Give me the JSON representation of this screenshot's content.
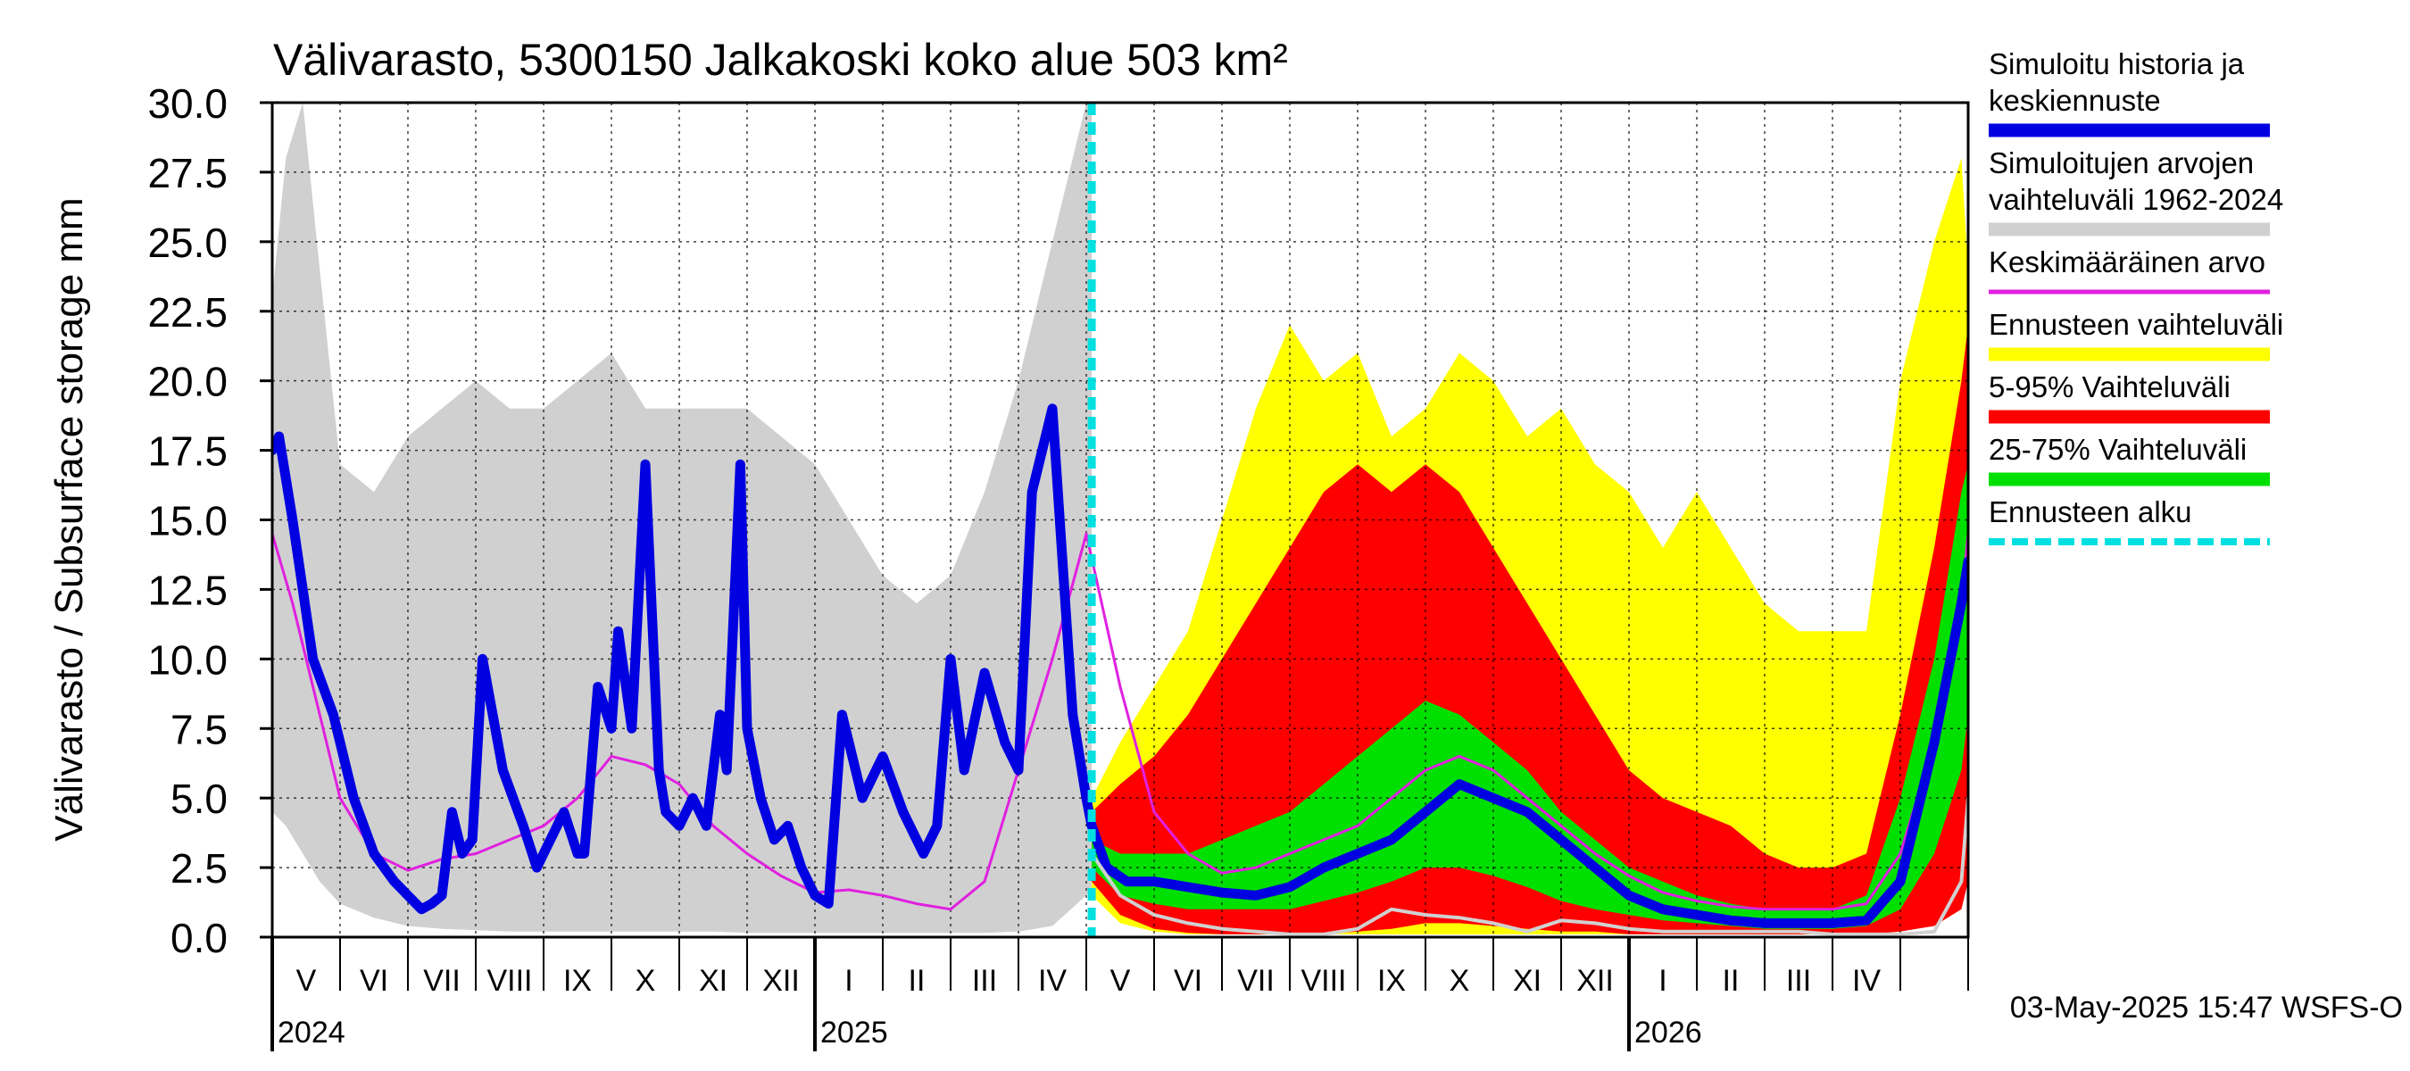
{
  "chart_data": {
    "type": "area",
    "title": "Välivarasto, 5300150 Jalkakoski koko alue 503 km²",
    "ylabel": "Välivarasto / Subsurface storage  mm",
    "xlabel": "",
    "ylim": [
      0,
      30
    ],
    "yticks": [
      "0.0",
      "2.5",
      "5.0",
      "7.5",
      "10.0",
      "12.5",
      "15.0",
      "17.5",
      "20.0",
      "22.5",
      "25.0",
      "27.5",
      "30.0"
    ],
    "x_range_months": [
      0,
      25
    ],
    "month_labels": [
      "V",
      "VI",
      "VII",
      "VIII",
      "IX",
      "X",
      "XI",
      "XII",
      "I",
      "II",
      "III",
      "IV",
      "V",
      "VI",
      "VII",
      "VIII",
      "IX",
      "X",
      "XI",
      "XII",
      "I",
      "II",
      "III",
      "IV"
    ],
    "year_labels": [
      {
        "label": "2024",
        "month_index": 0
      },
      {
        "label": "2025",
        "month_index": 8
      },
      {
        "label": "2026",
        "month_index": 20
      }
    ],
    "forecast_start_month": 12.08,
    "legend": [
      {
        "label_lines": [
          "Simuloitu historia ja",
          "keskiennuste"
        ],
        "color": "#0000e0",
        "style": "solid"
      },
      {
        "label_lines": [
          "Simuloitujen arvojen",
          "vaihteluväli 1962-2024"
        ],
        "color": "#d0d0d0",
        "style": "solid"
      },
      {
        "label_lines": [
          "Keskimääräinen arvo"
        ],
        "color": "#e020e0",
        "style": "thin"
      },
      {
        "label_lines": [
          "Ennusteen vaihteluväli"
        ],
        "color": "#ffff00",
        "style": "solid"
      },
      {
        "label_lines": [
          "5-95% Vaihteluväli"
        ],
        "color": "#ff0000",
        "style": "solid"
      },
      {
        "label_lines": [
          "25-75% Vaihteluväli"
        ],
        "color": "#00e000",
        "style": "solid"
      },
      {
        "label_lines": [
          "Ennusteen alku"
        ],
        "color": "#00e0e0",
        "style": "dashed"
      }
    ],
    "series": [
      {
        "name": "Simuloitujen arvojen vaihteluväli 1962-2024",
        "kind": "band",
        "color": "#d0d0d0",
        "x": [
          0,
          0.2,
          0.45,
          0.7,
          1,
          1.5,
          2,
          2.5,
          3,
          3.5,
          4,
          4.5,
          5,
          5.5,
          6,
          6.5,
          7,
          7.5,
          8,
          8.5,
          9,
          9.5,
          10,
          10.5,
          11,
          11.5,
          12,
          12.08
        ],
        "lo": [
          4.5,
          4,
          3,
          2,
          1.2,
          0.7,
          0.4,
          0.3,
          0.25,
          0.2,
          0.2,
          0.2,
          0.2,
          0.2,
          0.2,
          0.2,
          0.15,
          0.15,
          0.15,
          0.15,
          0.15,
          0.15,
          0.15,
          0.15,
          0.2,
          0.4,
          1.5,
          1.8
        ],
        "hi": [
          23,
          28,
          30,
          24,
          17,
          16,
          18,
          19,
          20,
          19,
          19,
          20,
          21,
          19,
          19,
          19,
          19,
          18,
          17,
          15,
          13,
          12,
          13,
          16,
          20,
          25,
          30,
          30
        ]
      },
      {
        "name": "Ennusteen vaihteluväli",
        "kind": "band",
        "color": "#ffff00",
        "x": [
          12.08,
          12.5,
          13,
          13.5,
          14,
          14.5,
          15,
          15.5,
          16,
          16.5,
          17,
          17.5,
          18,
          18.5,
          19,
          19.5,
          20,
          20.5,
          21,
          21.5,
          22,
          22.5,
          23,
          23.5,
          24,
          24.5,
          24.9,
          25
        ],
        "lo": [
          1.5,
          0.5,
          0.2,
          0.1,
          0.1,
          0.1,
          0.1,
          0.1,
          0.1,
          0.1,
          0.1,
          0.1,
          0.1,
          0.1,
          0.1,
          0.1,
          0.1,
          0.1,
          0.1,
          0.1,
          0.1,
          0.1,
          0.1,
          0.1,
          0.2,
          0.5,
          1,
          4
        ],
        "hi": [
          5,
          7,
          9,
          11,
          15,
          19,
          22,
          20,
          21,
          18,
          19,
          21,
          20,
          18,
          19,
          17,
          16,
          14,
          16,
          14,
          12,
          11,
          11,
          11,
          20,
          25,
          28,
          24
        ]
      },
      {
        "name": "5-95% Vaihteluväli",
        "kind": "band",
        "color": "#ff0000",
        "x": [
          12.08,
          12.5,
          13,
          13.5,
          14,
          14.5,
          15,
          15.5,
          16,
          16.5,
          17,
          17.5,
          18,
          18.5,
          19,
          19.5,
          20,
          20.5,
          21,
          21.5,
          22,
          22.5,
          23,
          23.5,
          24,
          24.5,
          24.9,
          25
        ],
        "lo": [
          2,
          0.8,
          0.3,
          0.15,
          0.1,
          0.1,
          0.1,
          0.1,
          0.2,
          0.3,
          0.5,
          0.5,
          0.4,
          0.3,
          0.2,
          0.2,
          0.1,
          0.1,
          0.1,
          0.1,
          0.1,
          0.1,
          0.1,
          0.1,
          0.2,
          0.4,
          1,
          2
        ],
        "hi": [
          4.5,
          5.5,
          6.5,
          8,
          10,
          12,
          14,
          16,
          17,
          16,
          17,
          16,
          14,
          12,
          10,
          8,
          6,
          5,
          4.5,
          4,
          3,
          2.5,
          2.5,
          3,
          8,
          14,
          20,
          22
        ]
      },
      {
        "name": "25-75% Vaihteluväli",
        "kind": "band",
        "color": "#00e000",
        "x": [
          12.08,
          12.5,
          13,
          13.5,
          14,
          14.5,
          15,
          15.5,
          16,
          16.5,
          17,
          17.5,
          18,
          18.5,
          19,
          19.5,
          20,
          20.5,
          21,
          21.5,
          22,
          22.5,
          23,
          23.5,
          24,
          24.5,
          24.9,
          25
        ],
        "lo": [
          2.5,
          1.5,
          1.2,
          1,
          1,
          1,
          1,
          1.3,
          1.6,
          2,
          2.5,
          2.5,
          2.2,
          1.8,
          1.3,
          1,
          0.8,
          0.6,
          0.5,
          0.4,
          0.3,
          0.3,
          0.3,
          0.4,
          1,
          3,
          6,
          8
        ],
        "hi": [
          3.5,
          3,
          3,
          3,
          3.5,
          4,
          4.5,
          5.5,
          6.5,
          7.5,
          8.5,
          8,
          7,
          6,
          4.5,
          3.5,
          2.5,
          2,
          1.5,
          1.2,
          1,
          1,
          1,
          1.5,
          5,
          10,
          16,
          17
        ]
      },
      {
        "name": "Keskimääräinen arvo",
        "kind": "line",
        "color": "#e020e0",
        "width": 3,
        "x": [
          0,
          0.3,
          0.7,
          1,
          1.5,
          2,
          2.5,
          3,
          3.5,
          4,
          4.5,
          5,
          5.5,
          6,
          6.5,
          7,
          7.5,
          8,
          8.5,
          9,
          9.5,
          10,
          10.5,
          11,
          11.5,
          12,
          12.5,
          13,
          13.5,
          14,
          14.5,
          15,
          15.5,
          16,
          16.5,
          17,
          17.5,
          18,
          18.5,
          19,
          19.5,
          20,
          20.5,
          21,
          21.5,
          22,
          22.5,
          23,
          23.5,
          24,
          24.5,
          24.9,
          25
        ],
        "y": [
          14.5,
          12,
          8,
          5,
          3,
          2.4,
          2.8,
          3,
          3.5,
          4,
          5,
          6.5,
          6.2,
          5.5,
          4,
          3,
          2.2,
          1.6,
          1.7,
          1.5,
          1.2,
          1,
          2,
          6,
          10,
          14.5,
          9,
          4.5,
          3,
          2.3,
          2.5,
          3,
          3.5,
          4,
          5,
          6,
          6.5,
          6,
          5,
          4,
          3,
          2.2,
          1.6,
          1.3,
          1.1,
          1,
          1,
          1,
          1.2,
          3,
          7,
          12,
          14.5
        ]
      },
      {
        "name": "Simuloitu historia ja keskiennuste",
        "kind": "line",
        "color": "#0000e0",
        "width": 11,
        "x": [
          0,
          0.1,
          0.3,
          0.6,
          0.9,
          1.2,
          1.5,
          1.8,
          2,
          2.2,
          2.35,
          2.5,
          2.65,
          2.8,
          2.95,
          3.1,
          3.4,
          3.7,
          3.9,
          4.1,
          4.3,
          4.5,
          4.6,
          4.8,
          5,
          5.1,
          5.3,
          5.5,
          5.7,
          5.8,
          6,
          6.2,
          6.4,
          6.6,
          6.7,
          6.9,
          7,
          7.2,
          7.4,
          7.6,
          7.8,
          8,
          8.2,
          8.4,
          8.5,
          8.7,
          9,
          9.3,
          9.6,
          9.8,
          10,
          10.2,
          10.5,
          10.8,
          11,
          11.2,
          11.5,
          11.8,
          12,
          12.08,
          12.3,
          12.6,
          13,
          13.5,
          14,
          14.5,
          15,
          15.5,
          16,
          16.5,
          17,
          17.5,
          18,
          18.5,
          19,
          19.5,
          20,
          20.5,
          21,
          21.5,
          22,
          22.5,
          23,
          23.5,
          24,
          24.5,
          24.9,
          25
        ],
        "y": [
          17.5,
          18,
          15,
          10,
          8,
          5,
          3,
          2,
          1.5,
          1,
          1.2,
          1.5,
          4.5,
          3,
          3.5,
          10,
          6,
          4,
          2.5,
          3.5,
          4.5,
          3,
          3,
          9,
          7.5,
          11,
          7.5,
          17,
          6,
          4.5,
          4,
          5,
          4,
          8,
          6,
          17,
          7.5,
          5,
          3.5,
          4,
          2.5,
          1.5,
          1.2,
          8,
          7,
          5,
          6.5,
          4.5,
          3,
          4,
          10,
          6,
          9.5,
          7,
          6,
          16,
          19,
          8,
          5,
          4,
          2.5,
          2,
          2,
          1.8,
          1.6,
          1.5,
          1.8,
          2.5,
          3,
          3.5,
          4.5,
          5.5,
          5,
          4.5,
          3.5,
          2.5,
          1.5,
          1,
          0.8,
          0.6,
          0.5,
          0.5,
          0.5,
          0.6,
          2,
          7,
          12,
          13.5
        ]
      },
      {
        "name": "Lowest-scenario trace",
        "kind": "line",
        "color": "#d0d0d0",
        "width": 4,
        "x": [
          12.08,
          12.5,
          13,
          13.5,
          14,
          14.5,
          15,
          15.5,
          16,
          16.5,
          17,
          17.5,
          18,
          18.5,
          19,
          19.5,
          20,
          20.5,
          21,
          21.5,
          22,
          22.5,
          23,
          23.5,
          24,
          24.5,
          24.9,
          25
        ],
        "y": [
          3,
          1.5,
          0.8,
          0.5,
          0.3,
          0.2,
          0.1,
          0.1,
          0.3,
          1,
          0.8,
          0.7,
          0.5,
          0.2,
          0.6,
          0.5,
          0.3,
          0.2,
          0.2,
          0.2,
          0.2,
          0.2,
          0.1,
          0.1,
          0.1,
          0.2,
          2,
          5
        ]
      }
    ],
    "timestamp": "03-May-2025 15:47 WSFS-O"
  }
}
